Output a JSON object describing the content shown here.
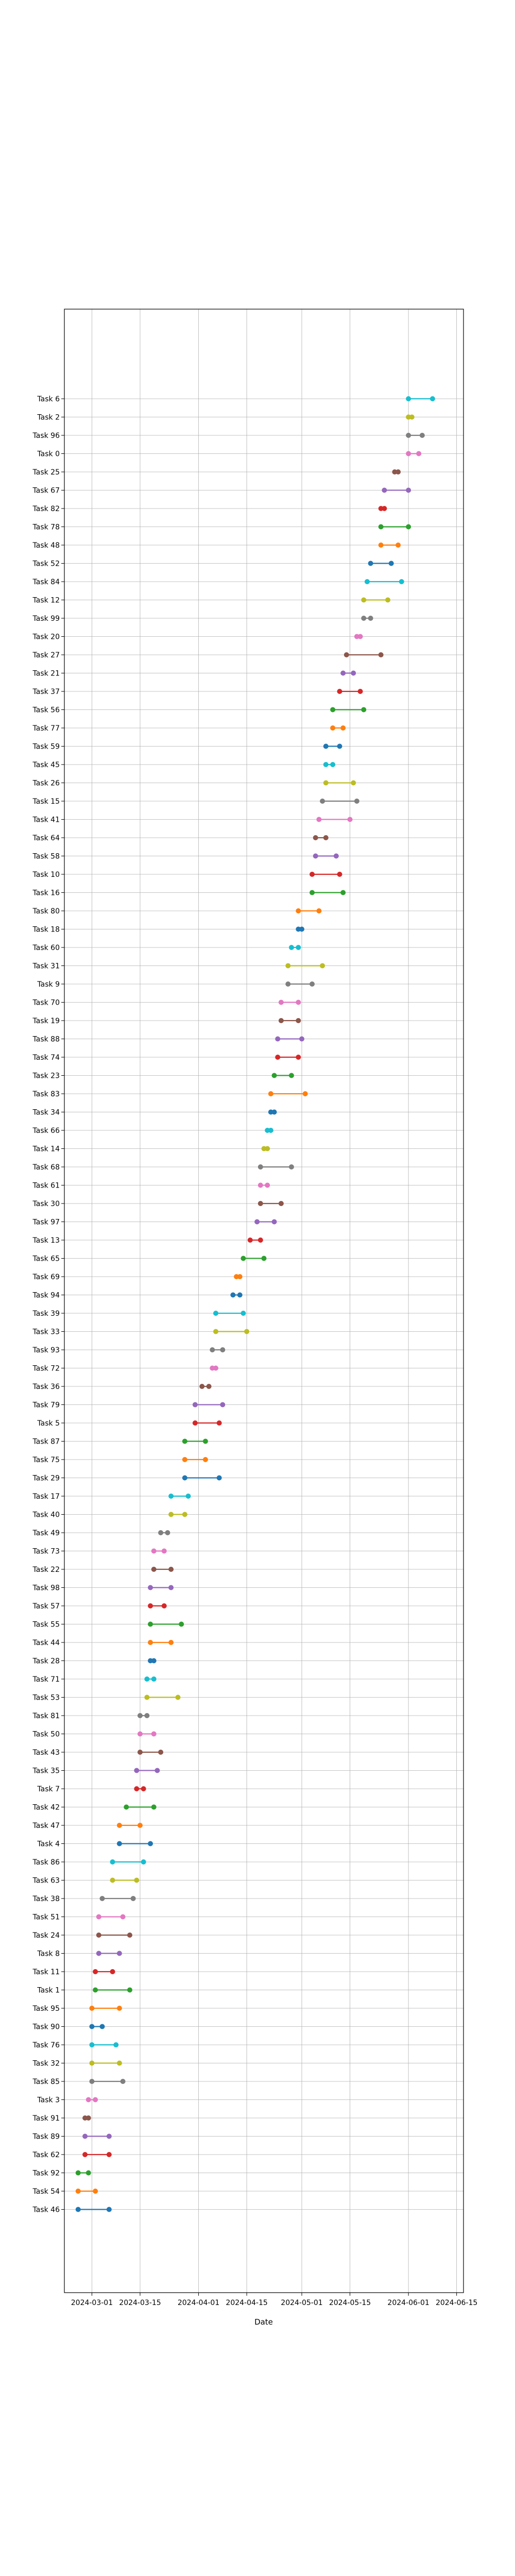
{
  "chart_data": {
    "type": "dumbbell",
    "xlabel": "Date",
    "ylabel": "",
    "title": "",
    "grid": true,
    "x_axis_type": "date",
    "xlim": [
      "2024-02-22",
      "2024-06-17"
    ],
    "x_ticks": [
      "2024-03-01",
      "2024-03-15",
      "2024-04-01",
      "2024-04-15",
      "2024-05-01",
      "2024-05-15",
      "2024-06-01",
      "2024-06-15"
    ],
    "tasks": [
      {
        "name": "Task 6",
        "start": "2024-06-01",
        "end": "2024-06-08",
        "color": "#17becf"
      },
      {
        "name": "Task 2",
        "start": "2024-06-01",
        "end": "2024-06-02",
        "color": "#bcbd22"
      },
      {
        "name": "Task 96",
        "start": "2024-06-01",
        "end": "2024-06-05",
        "color": "#7f7f7f"
      },
      {
        "name": "Task 0",
        "start": "2024-06-01",
        "end": "2024-06-04",
        "color": "#e377c2"
      },
      {
        "name": "Task 25",
        "start": "2024-05-28",
        "end": "2024-05-29",
        "color": "#8c564b"
      },
      {
        "name": "Task 67",
        "start": "2024-05-25",
        "end": "2024-06-01",
        "color": "#9467bd"
      },
      {
        "name": "Task 82",
        "start": "2024-05-24",
        "end": "2024-05-25",
        "color": "#d62728"
      },
      {
        "name": "Task 78",
        "start": "2024-05-24",
        "end": "2024-06-01",
        "color": "#2ca02c"
      },
      {
        "name": "Task 48",
        "start": "2024-05-24",
        "end": "2024-05-29",
        "color": "#ff7f0e"
      },
      {
        "name": "Task 52",
        "start": "2024-05-21",
        "end": "2024-05-27",
        "color": "#1f77b4"
      },
      {
        "name": "Task 84",
        "start": "2024-05-20",
        "end": "2024-05-30",
        "color": "#17becf"
      },
      {
        "name": "Task 12",
        "start": "2024-05-19",
        "end": "2024-05-26",
        "color": "#bcbd22"
      },
      {
        "name": "Task 99",
        "start": "2024-05-19",
        "end": "2024-05-21",
        "color": "#7f7f7f"
      },
      {
        "name": "Task 20",
        "start": "2024-05-17",
        "end": "2024-05-18",
        "color": "#e377c2"
      },
      {
        "name": "Task 27",
        "start": "2024-05-14",
        "end": "2024-05-24",
        "color": "#8c564b"
      },
      {
        "name": "Task 21",
        "start": "2024-05-13",
        "end": "2024-05-16",
        "color": "#9467bd"
      },
      {
        "name": "Task 37",
        "start": "2024-05-12",
        "end": "2024-05-18",
        "color": "#d62728"
      },
      {
        "name": "Task 56",
        "start": "2024-05-10",
        "end": "2024-05-19",
        "color": "#2ca02c"
      },
      {
        "name": "Task 77",
        "start": "2024-05-10",
        "end": "2024-05-13",
        "color": "#ff7f0e"
      },
      {
        "name": "Task 59",
        "start": "2024-05-08",
        "end": "2024-05-12",
        "color": "#1f77b4"
      },
      {
        "name": "Task 45",
        "start": "2024-05-08",
        "end": "2024-05-10",
        "color": "#17becf"
      },
      {
        "name": "Task 26",
        "start": "2024-05-08",
        "end": "2024-05-16",
        "color": "#bcbd22"
      },
      {
        "name": "Task 15",
        "start": "2024-05-07",
        "end": "2024-05-17",
        "color": "#7f7f7f"
      },
      {
        "name": "Task 41",
        "start": "2024-05-06",
        "end": "2024-05-15",
        "color": "#e377c2"
      },
      {
        "name": "Task 64",
        "start": "2024-05-05",
        "end": "2024-05-08",
        "color": "#8c564b"
      },
      {
        "name": "Task 58",
        "start": "2024-05-05",
        "end": "2024-05-11",
        "color": "#9467bd"
      },
      {
        "name": "Task 10",
        "start": "2024-05-04",
        "end": "2024-05-12",
        "color": "#d62728"
      },
      {
        "name": "Task 16",
        "start": "2024-05-04",
        "end": "2024-05-13",
        "color": "#2ca02c"
      },
      {
        "name": "Task 80",
        "start": "2024-04-30",
        "end": "2024-05-06",
        "color": "#ff7f0e"
      },
      {
        "name": "Task 18",
        "start": "2024-04-30",
        "end": "2024-05-01",
        "color": "#1f77b4"
      },
      {
        "name": "Task 60",
        "start": "2024-04-28",
        "end": "2024-04-30",
        "color": "#17becf"
      },
      {
        "name": "Task 31",
        "start": "2024-04-27",
        "end": "2024-05-07",
        "color": "#bcbd22"
      },
      {
        "name": "Task 9",
        "start": "2024-04-27",
        "end": "2024-05-04",
        "color": "#7f7f7f"
      },
      {
        "name": "Task 70",
        "start": "2024-04-25",
        "end": "2024-04-30",
        "color": "#e377c2"
      },
      {
        "name": "Task 19",
        "start": "2024-04-25",
        "end": "2024-04-30",
        "color": "#8c564b"
      },
      {
        "name": "Task 88",
        "start": "2024-04-24",
        "end": "2024-05-01",
        "color": "#9467bd"
      },
      {
        "name": "Task 74",
        "start": "2024-04-24",
        "end": "2024-04-30",
        "color": "#d62728"
      },
      {
        "name": "Task 23",
        "start": "2024-04-23",
        "end": "2024-04-28",
        "color": "#2ca02c"
      },
      {
        "name": "Task 83",
        "start": "2024-04-22",
        "end": "2024-05-02",
        "color": "#ff7f0e"
      },
      {
        "name": "Task 34",
        "start": "2024-04-22",
        "end": "2024-04-23",
        "color": "#1f77b4"
      },
      {
        "name": "Task 66",
        "start": "2024-04-21",
        "end": "2024-04-22",
        "color": "#17becf"
      },
      {
        "name": "Task 14",
        "start": "2024-04-20",
        "end": "2024-04-21",
        "color": "#bcbd22"
      },
      {
        "name": "Task 68",
        "start": "2024-04-19",
        "end": "2024-04-28",
        "color": "#7f7f7f"
      },
      {
        "name": "Task 61",
        "start": "2024-04-19",
        "end": "2024-04-21",
        "color": "#e377c2"
      },
      {
        "name": "Task 30",
        "start": "2024-04-19",
        "end": "2024-04-25",
        "color": "#8c564b"
      },
      {
        "name": "Task 97",
        "start": "2024-04-18",
        "end": "2024-04-23",
        "color": "#9467bd"
      },
      {
        "name": "Task 13",
        "start": "2024-04-16",
        "end": "2024-04-19",
        "color": "#d62728"
      },
      {
        "name": "Task 65",
        "start": "2024-04-14",
        "end": "2024-04-20",
        "color": "#2ca02c"
      },
      {
        "name": "Task 69",
        "start": "2024-04-12",
        "end": "2024-04-13",
        "color": "#ff7f0e"
      },
      {
        "name": "Task 94",
        "start": "2024-04-11",
        "end": "2024-04-13",
        "color": "#1f77b4"
      },
      {
        "name": "Task 39",
        "start": "2024-04-06",
        "end": "2024-04-14",
        "color": "#17becf"
      },
      {
        "name": "Task 33",
        "start": "2024-04-06",
        "end": "2024-04-15",
        "color": "#bcbd22"
      },
      {
        "name": "Task 93",
        "start": "2024-04-05",
        "end": "2024-04-08",
        "color": "#7f7f7f"
      },
      {
        "name": "Task 72",
        "start": "2024-04-05",
        "end": "2024-04-06",
        "color": "#e377c2"
      },
      {
        "name": "Task 36",
        "start": "2024-04-02",
        "end": "2024-04-04",
        "color": "#8c564b"
      },
      {
        "name": "Task 79",
        "start": "2024-03-31",
        "end": "2024-04-08",
        "color": "#9467bd"
      },
      {
        "name": "Task 5",
        "start": "2024-03-31",
        "end": "2024-04-07",
        "color": "#d62728"
      },
      {
        "name": "Task 87",
        "start": "2024-03-28",
        "end": "2024-04-03",
        "color": "#2ca02c"
      },
      {
        "name": "Task 75",
        "start": "2024-03-28",
        "end": "2024-04-03",
        "color": "#ff7f0e"
      },
      {
        "name": "Task 29",
        "start": "2024-03-28",
        "end": "2024-04-07",
        "color": "#1f77b4"
      },
      {
        "name": "Task 17",
        "start": "2024-03-24",
        "end": "2024-03-29",
        "color": "#17becf"
      },
      {
        "name": "Task 40",
        "start": "2024-03-24",
        "end": "2024-03-28",
        "color": "#bcbd22"
      },
      {
        "name": "Task 49",
        "start": "2024-03-21",
        "end": "2024-03-23",
        "color": "#7f7f7f"
      },
      {
        "name": "Task 73",
        "start": "2024-03-19",
        "end": "2024-03-22",
        "color": "#e377c2"
      },
      {
        "name": "Task 22",
        "start": "2024-03-19",
        "end": "2024-03-24",
        "color": "#8c564b"
      },
      {
        "name": "Task 98",
        "start": "2024-03-18",
        "end": "2024-03-24",
        "color": "#9467bd"
      },
      {
        "name": "Task 57",
        "start": "2024-03-18",
        "end": "2024-03-22",
        "color": "#d62728"
      },
      {
        "name": "Task 55",
        "start": "2024-03-18",
        "end": "2024-03-27",
        "color": "#2ca02c"
      },
      {
        "name": "Task 44",
        "start": "2024-03-18",
        "end": "2024-03-24",
        "color": "#ff7f0e"
      },
      {
        "name": "Task 28",
        "start": "2024-03-18",
        "end": "2024-03-19",
        "color": "#1f77b4"
      },
      {
        "name": "Task 71",
        "start": "2024-03-17",
        "end": "2024-03-19",
        "color": "#17becf"
      },
      {
        "name": "Task 53",
        "start": "2024-03-17",
        "end": "2024-03-26",
        "color": "#bcbd22"
      },
      {
        "name": "Task 81",
        "start": "2024-03-15",
        "end": "2024-03-17",
        "color": "#7f7f7f"
      },
      {
        "name": "Task 50",
        "start": "2024-03-15",
        "end": "2024-03-19",
        "color": "#e377c2"
      },
      {
        "name": "Task 43",
        "start": "2024-03-15",
        "end": "2024-03-21",
        "color": "#8c564b"
      },
      {
        "name": "Task 35",
        "start": "2024-03-14",
        "end": "2024-03-20",
        "color": "#9467bd"
      },
      {
        "name": "Task 7",
        "start": "2024-03-14",
        "end": "2024-03-16",
        "color": "#d62728"
      },
      {
        "name": "Task 42",
        "start": "2024-03-11",
        "end": "2024-03-19",
        "color": "#2ca02c"
      },
      {
        "name": "Task 47",
        "start": "2024-03-09",
        "end": "2024-03-15",
        "color": "#ff7f0e"
      },
      {
        "name": "Task 4",
        "start": "2024-03-09",
        "end": "2024-03-18",
        "color": "#1f77b4"
      },
      {
        "name": "Task 86",
        "start": "2024-03-07",
        "end": "2024-03-16",
        "color": "#17becf"
      },
      {
        "name": "Task 63",
        "start": "2024-03-07",
        "end": "2024-03-14",
        "color": "#bcbd22"
      },
      {
        "name": "Task 38",
        "start": "2024-03-04",
        "end": "2024-03-13",
        "color": "#7f7f7f"
      },
      {
        "name": "Task 51",
        "start": "2024-03-03",
        "end": "2024-03-10",
        "color": "#e377c2"
      },
      {
        "name": "Task 24",
        "start": "2024-03-03",
        "end": "2024-03-12",
        "color": "#8c564b"
      },
      {
        "name": "Task 8",
        "start": "2024-03-03",
        "end": "2024-03-09",
        "color": "#9467bd"
      },
      {
        "name": "Task 11",
        "start": "2024-03-02",
        "end": "2024-03-07",
        "color": "#d62728"
      },
      {
        "name": "Task 1",
        "start": "2024-03-02",
        "end": "2024-03-12",
        "color": "#2ca02c"
      },
      {
        "name": "Task 95",
        "start": "2024-03-01",
        "end": "2024-03-09",
        "color": "#ff7f0e"
      },
      {
        "name": "Task 90",
        "start": "2024-03-01",
        "end": "2024-03-04",
        "color": "#1f77b4"
      },
      {
        "name": "Task 76",
        "start": "2024-03-01",
        "end": "2024-03-08",
        "color": "#17becf"
      },
      {
        "name": "Task 32",
        "start": "2024-03-01",
        "end": "2024-03-09",
        "color": "#bcbd22"
      },
      {
        "name": "Task 85",
        "start": "2024-03-01",
        "end": "2024-03-10",
        "color": "#7f7f7f"
      },
      {
        "name": "Task 3",
        "start": "2024-02-29",
        "end": "2024-03-02",
        "color": "#e377c2"
      },
      {
        "name": "Task 91",
        "start": "2024-02-28",
        "end": "2024-02-29",
        "color": "#8c564b"
      },
      {
        "name": "Task 89",
        "start": "2024-02-28",
        "end": "2024-03-06",
        "color": "#9467bd"
      },
      {
        "name": "Task 62",
        "start": "2024-02-28",
        "end": "2024-03-06",
        "color": "#d62728"
      },
      {
        "name": "Task 92",
        "start": "2024-02-26",
        "end": "2024-02-29",
        "color": "#2ca02c"
      },
      {
        "name": "Task 54",
        "start": "2024-02-26",
        "end": "2024-03-02",
        "color": "#ff7f0e"
      },
      {
        "name": "Task 46",
        "start": "2024-02-26",
        "end": "2024-03-06",
        "color": "#1f77b4"
      }
    ]
  }
}
